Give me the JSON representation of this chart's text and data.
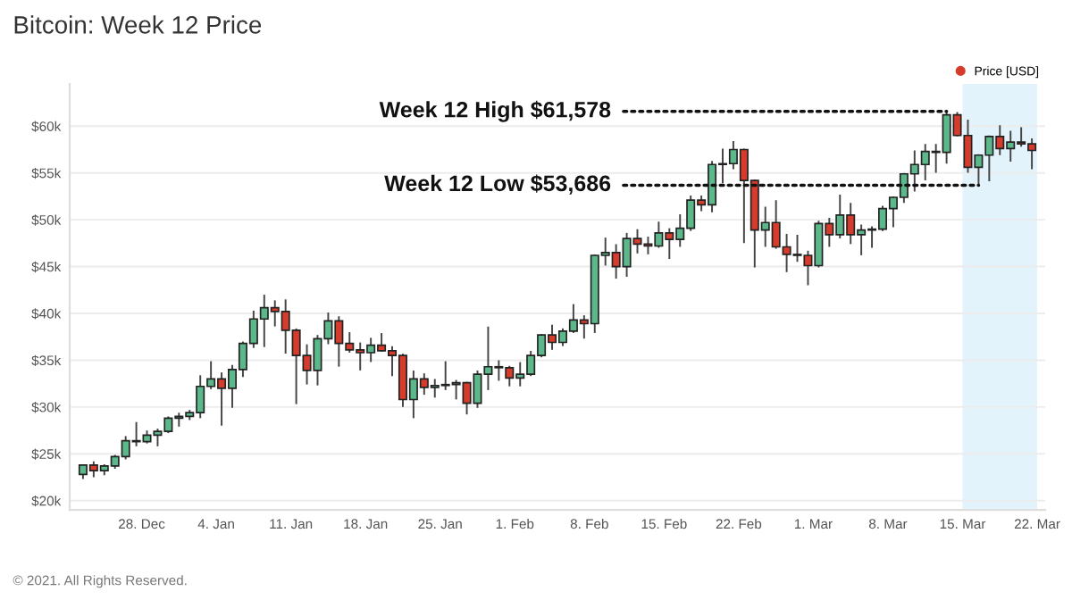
{
  "chart_data": {
    "type": "candlestick",
    "title": "Bitcoin: Week 12 Price",
    "x": [
      "2020-12-22T12:00",
      "2020-12-23T12:00",
      "2020-12-24T12:00",
      "2020-12-25T12:00",
      "2020-12-26T12:00",
      "2020-12-27T12:00",
      "2020-12-28T12:00",
      "2020-12-29T12:00",
      "2020-12-30T12:00",
      "2020-12-31T12:00",
      "2021-01-01T12:00",
      "2021-01-02T12:00",
      "2021-01-03T12:00",
      "2021-01-04T12:00",
      "2021-01-05T12:00",
      "2021-01-06T12:00",
      "2021-01-07T12:00",
      "2021-01-08T12:00",
      "2021-01-09T12:00",
      "2021-01-10T12:00",
      "2021-01-11T12:00",
      "2021-01-12T12:00",
      "2021-01-13T12:00",
      "2021-01-14T12:00",
      "2021-01-15T12:00",
      "2021-01-16T12:00",
      "2021-01-17T12:00",
      "2021-01-18T12:00",
      "2021-01-19T12:00",
      "2021-01-20T12:00",
      "2021-01-21T12:00",
      "2021-01-22T12:00",
      "2021-01-23T12:00",
      "2021-01-24T12:00",
      "2021-01-25T12:00",
      "2021-01-26T12:00",
      "2021-01-27T12:00",
      "2021-01-28T12:00",
      "2021-01-29T12:00",
      "2021-01-30T12:00",
      "2021-01-31T12:00",
      "2021-02-01T12:00",
      "2021-02-02T12:00",
      "2021-02-03T12:00",
      "2021-02-04T12:00",
      "2021-02-05T12:00",
      "2021-02-06T12:00",
      "2021-02-07T12:00",
      "2021-02-08T12:00",
      "2021-02-09T12:00",
      "2021-02-10T12:00",
      "2021-02-11T12:00",
      "2021-02-12T12:00",
      "2021-02-13T12:00",
      "2021-02-14T12:00",
      "2021-02-15T12:00",
      "2021-02-16T12:00",
      "2021-02-17T12:00",
      "2021-02-18T12:00",
      "2021-02-19T12:00",
      "2021-02-20T12:00",
      "2021-02-21T12:00",
      "2021-02-22T12:00",
      "2021-02-23T12:00",
      "2021-02-24T12:00",
      "2021-02-25T12:00",
      "2021-02-26T12:00",
      "2021-02-27T12:00",
      "2021-02-28T12:00",
      "2021-03-01T12:00",
      "2021-03-02T12:00",
      "2021-03-03T12:00",
      "2021-03-04T12:00",
      "2021-03-05T12:00",
      "2021-03-06T12:00",
      "2021-03-07T12:00",
      "2021-03-08T12:00",
      "2021-03-09T12:00",
      "2021-03-10T12:00",
      "2021-03-11T12:00",
      "2021-03-12T12:00",
      "2021-03-13T12:00",
      "2021-03-14T12:00",
      "2021-03-15T12:00",
      "2021-03-16T12:00",
      "2021-03-17T12:00",
      "2021-03-18T12:00",
      "2021-03-19T12:00",
      "2021-03-20T12:00",
      "2021-03-21T12:00"
    ],
    "series": [
      {
        "name": "Price [USD]",
        "ohlc": [
          [
            22800,
            23800,
            22400,
            23800
          ],
          [
            23800,
            24100,
            22600,
            23200
          ],
          [
            23200,
            23800,
            22800,
            23700
          ],
          [
            23700,
            24800,
            23500,
            24700
          ],
          [
            24700,
            26800,
            24500,
            26400
          ],
          [
            26400,
            28300,
            25900,
            26300
          ],
          [
            26300,
            27400,
            26200,
            27000
          ],
          [
            27000,
            27600,
            25900,
            27400
          ],
          [
            27400,
            28900,
            27300,
            28800
          ],
          [
            28800,
            29300,
            28000,
            29000
          ],
          [
            29000,
            29600,
            28700,
            29400
          ],
          [
            29400,
            33300,
            28900,
            32200
          ],
          [
            32200,
            34800,
            32000,
            33000
          ],
          [
            33000,
            33600,
            28100,
            32000
          ],
          [
            32000,
            34400,
            30000,
            34000
          ],
          [
            34000,
            36900,
            33300,
            36800
          ],
          [
            36800,
            40200,
            36400,
            39400
          ],
          [
            39400,
            41900,
            36500,
            40600
          ],
          [
            40600,
            41300,
            38700,
            40200
          ],
          [
            40200,
            41400,
            35800,
            38200
          ],
          [
            38200,
            38300,
            30400,
            35500
          ],
          [
            35500,
            36600,
            32500,
            33900
          ],
          [
            33900,
            37600,
            32400,
            37300
          ],
          [
            37300,
            40000,
            36800,
            39200
          ],
          [
            39200,
            39600,
            34400,
            36800
          ],
          [
            36800,
            37900,
            35900,
            36100
          ],
          [
            36100,
            36800,
            34000,
            35800
          ],
          [
            35800,
            37300,
            34900,
            36600
          ],
          [
            36600,
            37800,
            36000,
            36000
          ],
          [
            36000,
            36400,
            33400,
            35500
          ],
          [
            35500,
            35600,
            30100,
            30800
          ],
          [
            30800,
            33800,
            28900,
            33000
          ],
          [
            33000,
            33500,
            31400,
            32100
          ],
          [
            32100,
            32900,
            31100,
            32300
          ],
          [
            32300,
            34800,
            31900,
            32400
          ],
          [
            32400,
            32800,
            30900,
            32600
          ],
          [
            32600,
            32600,
            29300,
            30400
          ],
          [
            30400,
            33800,
            30000,
            33500
          ],
          [
            33500,
            38500,
            31900,
            34300
          ],
          [
            34300,
            34900,
            32900,
            34200
          ],
          [
            34200,
            34300,
            32300,
            33100
          ],
          [
            33100,
            34700,
            32300,
            33500
          ],
          [
            33500,
            35900,
            33400,
            35500
          ],
          [
            35500,
            37700,
            35400,
            37700
          ],
          [
            37700,
            38700,
            36200,
            36900
          ],
          [
            36900,
            38300,
            36600,
            38100
          ],
          [
            38100,
            40900,
            38000,
            39300
          ],
          [
            39300,
            39700,
            37400,
            38900
          ],
          [
            38900,
            46200,
            38000,
            46200
          ],
          [
            46200,
            48000,
            45200,
            46500
          ],
          [
            46500,
            47300,
            43800,
            45000
          ],
          [
            45000,
            48500,
            44000,
            48000
          ],
          [
            48000,
            48900,
            46500,
            47400
          ],
          [
            47400,
            48100,
            46400,
            47200
          ],
          [
            47200,
            49700,
            47100,
            48600
          ],
          [
            48600,
            49000,
            45900,
            47900
          ],
          [
            47900,
            50500,
            47200,
            49100
          ],
          [
            49100,
            52500,
            48900,
            52100
          ],
          [
            52100,
            52500,
            51000,
            51600
          ],
          [
            51600,
            56200,
            50900,
            55900
          ],
          [
            55900,
            57500,
            54000,
            56000
          ],
          [
            56000,
            58300,
            55500,
            57500
          ],
          [
            57500,
            57500,
            47600,
            54200
          ],
          [
            54200,
            54200,
            45000,
            48900
          ],
          [
            48900,
            51300,
            47200,
            49700
          ],
          [
            49700,
            52000,
            47000,
            47100
          ],
          [
            47100,
            48400,
            44500,
            46300
          ],
          [
            46300,
            48300,
            45600,
            46200
          ],
          [
            46200,
            46600,
            43100,
            45100
          ],
          [
            45100,
            49800,
            45000,
            49600
          ],
          [
            49600,
            50100,
            47200,
            48400
          ],
          [
            48400,
            52600,
            48100,
            50500
          ],
          [
            50500,
            51700,
            47500,
            48400
          ],
          [
            48400,
            49400,
            46300,
            48900
          ],
          [
            48900,
            49200,
            47100,
            49000
          ],
          [
            49000,
            51400,
            48900,
            51200
          ],
          [
            51200,
            52400,
            49300,
            52400
          ],
          [
            52400,
            54900,
            51900,
            54900
          ],
          [
            54900,
            57300,
            53100,
            55900
          ],
          [
            55900,
            58000,
            54300,
            57300
          ],
          [
            57300,
            58000,
            55100,
            57200
          ],
          [
            57200,
            61578,
            56100,
            61200
          ],
          [
            61200,
            61400,
            59000,
            59000
          ],
          [
            59000,
            60600,
            55100,
            55600
          ],
          [
            55600,
            56900,
            53686,
            56900
          ],
          [
            56900,
            58900,
            54200,
            58900
          ],
          [
            58900,
            60000,
            57000,
            57600
          ],
          [
            57600,
            59400,
            56300,
            58300
          ],
          [
            58300,
            59800,
            57900,
            58100
          ],
          [
            58100,
            58600,
            55500,
            57400
          ]
        ],
        "colors": [
          "#5cb88a",
          "#d63c2c",
          "#5cb88a",
          "#5cb88a",
          "#5cb88a",
          "#d63c2c",
          "#5cb88a",
          "#5cb88a",
          "#5cb88a",
          "#5cb88a",
          "#5cb88a",
          "#5cb88a",
          "#5cb88a",
          "#d63c2c",
          "#5cb88a",
          "#5cb88a",
          "#5cb88a",
          "#5cb88a",
          "#d63c2c",
          "#d63c2c",
          "#d63c2c",
          "#d63c2c",
          "#5cb88a",
          "#5cb88a",
          "#d63c2c",
          "#d63c2c",
          "#d63c2c",
          "#5cb88a",
          "#d63c2c",
          "#d63c2c",
          "#d63c2c",
          "#5cb88a",
          "#d63c2c",
          "#5cb88a",
          "#5cb88a",
          "#5cb88a",
          "#d63c2c",
          "#5cb88a",
          "#5cb88a",
          "#d63c2c",
          "#d63c2c",
          "#5cb88a",
          "#5cb88a",
          "#5cb88a",
          "#d63c2c",
          "#5cb88a",
          "#5cb88a",
          "#d63c2c",
          "#5cb88a",
          "#5cb88a",
          "#d63c2c",
          "#5cb88a",
          "#d63c2c",
          "#d63c2c",
          "#5cb88a",
          "#d63c2c",
          "#5cb88a",
          "#5cb88a",
          "#d63c2c",
          "#5cb88a",
          "#5cb88a",
          "#5cb88a",
          "#d63c2c",
          "#d63c2c",
          "#5cb88a",
          "#d63c2c",
          "#d63c2c",
          "#d63c2c",
          "#d63c2c",
          "#5cb88a",
          "#d63c2c",
          "#5cb88a",
          "#d63c2c",
          "#5cb88a",
          "#5cb88a",
          "#5cb88a",
          "#5cb88a",
          "#5cb88a",
          "#5cb88a",
          "#5cb88a",
          "#d63c2c",
          "#5cb88a",
          "#d63c2c",
          "#d63c2c",
          "#5cb88a",
          "#5cb88a",
          "#d63c2c",
          "#5cb88a",
          "#d63c2c",
          "#d63c2c"
        ]
      }
    ],
    "xlim": [
      "2020-12-21T06:00",
      "2021-03-22T18:00"
    ],
    "xticks": [
      {
        "value": "2020-12-28",
        "label": "28. Dec"
      },
      {
        "value": "2021-01-04",
        "label": "4. Jan"
      },
      {
        "value": "2021-01-11",
        "label": "11. Jan"
      },
      {
        "value": "2021-01-18",
        "label": "18. Jan"
      },
      {
        "value": "2021-01-25",
        "label": "25. Jan"
      },
      {
        "value": "2021-02-01",
        "label": "1. Feb"
      },
      {
        "value": "2021-02-08",
        "label": "8. Feb"
      },
      {
        "value": "2021-02-15",
        "label": "15. Feb"
      },
      {
        "value": "2021-02-22",
        "label": "22. Feb"
      },
      {
        "value": "2021-03-01",
        "label": "1. Mar"
      },
      {
        "value": "2021-03-08",
        "label": "8. Mar"
      },
      {
        "value": "2021-03-15",
        "label": "15. Mar"
      },
      {
        "value": "2021-03-22",
        "label": "22. Mar"
      }
    ],
    "ylim": [
      19000,
      64500
    ],
    "yticks": [
      {
        "value": 20000,
        "label": "$20k"
      },
      {
        "value": 25000,
        "label": "$25k"
      },
      {
        "value": 30000,
        "label": "$30k"
      },
      {
        "value": 35000,
        "label": "$35k"
      },
      {
        "value": 40000,
        "label": "$40k"
      },
      {
        "value": 45000,
        "label": "$45k"
      },
      {
        "value": 50000,
        "label": "$50k"
      },
      {
        "value": 55000,
        "label": "$55k"
      },
      {
        "value": 60000,
        "label": "$60k"
      }
    ],
    "bands": [
      {
        "axis": "x",
        "from": "2021-03-15",
        "to": "2021-03-22",
        "color": "#e3f3fc"
      }
    ],
    "annotations": [
      {
        "text": "Week 12 High $61,578",
        "x": "2021-03-13T12:00",
        "y": 61578
      },
      {
        "text": "Week 12 Low $53,686",
        "x": "2021-03-16T12:00",
        "y": 53686
      },
      "© 2021. All Rights Reserved."
    ],
    "grid": "y",
    "legend": "top right"
  }
}
